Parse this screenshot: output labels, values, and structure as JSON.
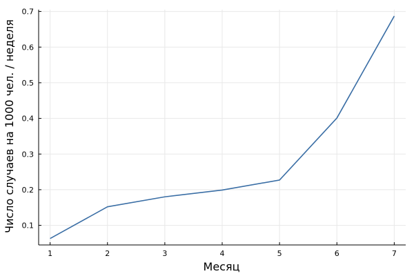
{
  "chart_data": {
    "type": "line",
    "title": "",
    "xlabel": "Месяц",
    "ylabel": "Число случаев на 1000 чел. / неделя",
    "x": [
      1,
      2,
      3,
      4,
      5,
      6,
      7
    ],
    "series": [
      {
        "values": [
          0.063,
          0.152,
          0.18,
          0.199,
          0.227,
          0.401,
          0.687
        ],
        "color": "#3a6ea5"
      }
    ],
    "xlim": [
      0.8,
      7.2
    ],
    "ylim": [
      0.045,
      0.705
    ],
    "xticks": [
      1,
      2,
      3,
      4,
      5,
      6,
      7
    ],
    "yticks": [
      0.1,
      0.2,
      0.3,
      0.4,
      0.5,
      0.6,
      0.7
    ],
    "xtick_labels": [
      "1",
      "2",
      "3",
      "4",
      "5",
      "6",
      "7"
    ],
    "ytick_labels": [
      "0.1",
      "0.2",
      "0.3",
      "0.4",
      "0.5",
      "0.6",
      "0.7"
    ],
    "grid": true,
    "legend": "none"
  }
}
